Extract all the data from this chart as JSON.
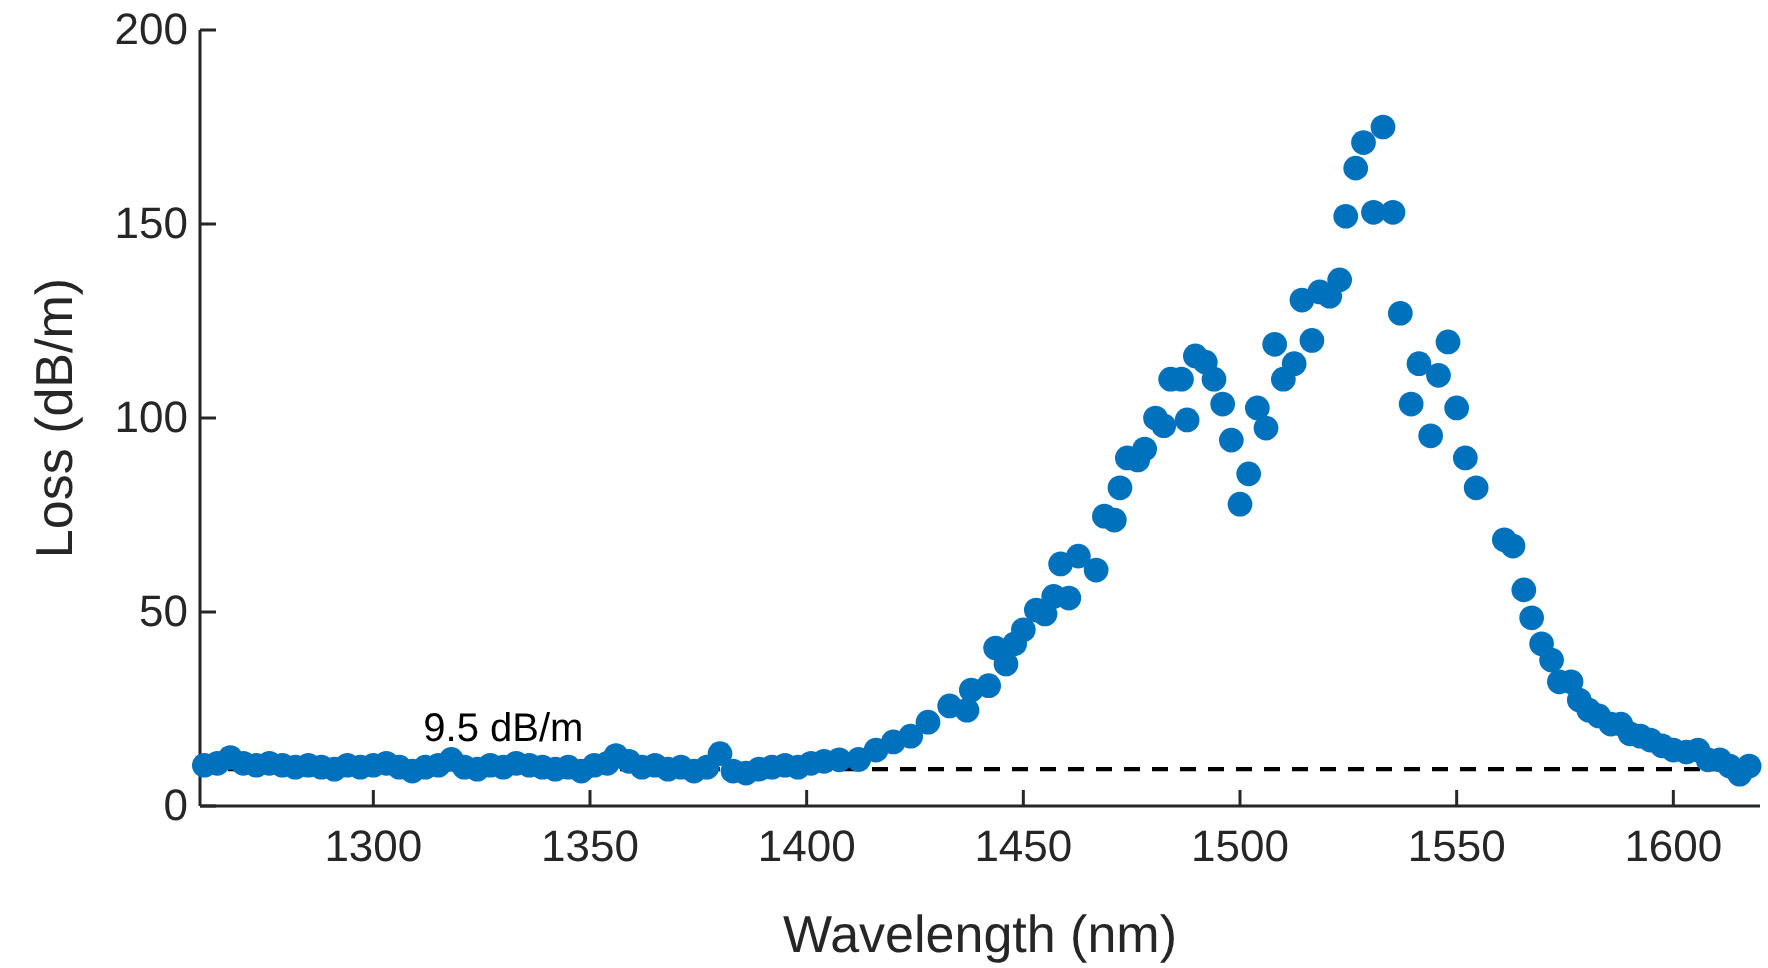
{
  "chart_data": {
    "type": "scatter",
    "xlabel": "Wavelength (nm)",
    "ylabel": "Loss (dB/m)",
    "marker": "circle",
    "xlim": [
      1260,
      1620
    ],
    "xticks": [
      1300,
      1350,
      1400,
      1450,
      1500,
      1550,
      1600
    ],
    "ylim": [
      0,
      200
    ],
    "yticks": [
      0,
      50,
      100,
      150,
      200
    ],
    "grid": false,
    "ref_lines": [
      {
        "axis": "y",
        "value": 9.5,
        "label": "9.5 dB/m",
        "color": "#000000",
        "line_style": "dashed"
      }
    ],
    "series": [
      {
        "color": "#0072bd",
        "x": [
          1261,
          1264,
          1267,
          1270,
          1273,
          1276,
          1279,
          1282,
          1285,
          1288,
          1291,
          1294,
          1297,
          1300,
          1303,
          1306,
          1309,
          1312,
          1315,
          1318,
          1321,
          1324,
          1327,
          1330,
          1333,
          1336,
          1339,
          1342,
          1345,
          1348,
          1351,
          1354,
          1356,
          1359,
          1362,
          1365,
          1368,
          1371,
          1374,
          1377,
          1380,
          1383,
          1386,
          1389,
          1392,
          1395,
          1398,
          1401,
          1404,
          1407.5,
          1412,
          1416,
          1420,
          1424,
          1428,
          1433,
          1437,
          1438,
          1442,
          1443.6,
          1446,
          1448,
          1450,
          1453,
          1455,
          1457,
          1460.5,
          1458.6,
          1462.7,
          1466.8,
          1468.7,
          1471,
          1472.3,
          1474,
          1476.4,
          1478,
          1480.5,
          1482.4,
          1487.8,
          1484,
          1486.5,
          1489.7,
          1492,
          1494,
          1496,
          1498,
          1500,
          1502,
          1504,
          1506,
          1508,
          1510,
          1512.5,
          1516.6,
          1514.3,
          1518.4,
          1520.7,
          1523,
          1524.4,
          1526.7,
          1528.5,
          1533,
          1530.8,
          1535.3,
          1537,
          1539.5,
          1541.3,
          1544,
          1545.8,
          1548,
          1550,
          1552,
          1554.5,
          1561,
          1563,
          1565.5,
          1567.3,
          1569.6,
          1571.9,
          1573.7,
          1576.4,
          1578.3,
          1580.5,
          1582.8,
          1585.6,
          1587.9,
          1590,
          1592.4,
          1594.7,
          1597.4,
          1600,
          1603,
          1605.7,
          1608,
          1610.7,
          1613,
          1615.3,
          1617.5
        ],
        "values": [
          10.5,
          11,
          12.5,
          11,
          10.5,
          11,
          10.5,
          10,
          10.5,
          10,
          9.5,
          10.5,
          10,
          10.5,
          11,
          10,
          9,
          10,
          10.5,
          12,
          10,
          9.5,
          10.5,
          10,
          11,
          10.5,
          10,
          9.5,
          10,
          9,
          10.5,
          11,
          13,
          11.5,
          10,
          10.5,
          9.5,
          10,
          9,
          10,
          13.5,
          9,
          8.5,
          9.5,
          10,
          10.5,
          10,
          11,
          11.5,
          11.9,
          12,
          14.4,
          16.5,
          18,
          21.6,
          25.8,
          24.7,
          29.9,
          31,
          40.7,
          36.6,
          41.8,
          45.4,
          50.5,
          49.5,
          54,
          53.6,
          62.4,
          64.4,
          60.8,
          74.7,
          73.7,
          82,
          89.7,
          89.2,
          92,
          100,
          98,
          99.5,
          110,
          110,
          116,
          114.4,
          110,
          103.6,
          94.3,
          77.8,
          85.6,
          102.6,
          97.4,
          119,
          110,
          114,
          120,
          130.4,
          132.5,
          131.4,
          135.6,
          152,
          164.4,
          171,
          175,
          153,
          153,
          127,
          103.6,
          114,
          95.4,
          111,
          119.6,
          102.6,
          89.7,
          82,
          68.6,
          67,
          55.7,
          48.5,
          41.8,
          37.6,
          32,
          32,
          27.3,
          24.7,
          23.2,
          21.1,
          21.1,
          18.6,
          18,
          17,
          15.5,
          14.4,
          13.9,
          14.4,
          11.9,
          11.9,
          10.3,
          8.2,
          10.3
        ]
      }
    ]
  }
}
